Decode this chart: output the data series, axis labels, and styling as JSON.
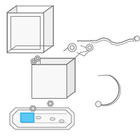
{
  "bg_color": "#ffffff",
  "line_color": "#6a6a6a",
  "line_color_light": "#999999",
  "highlight_color": "#2ab0e8",
  "highlight_fill": "#5bc8f5",
  "face_fill": "#f8f8f8",
  "face_fill2": "#f0f0f0",
  "face_fill3": "#e8e8e8"
}
